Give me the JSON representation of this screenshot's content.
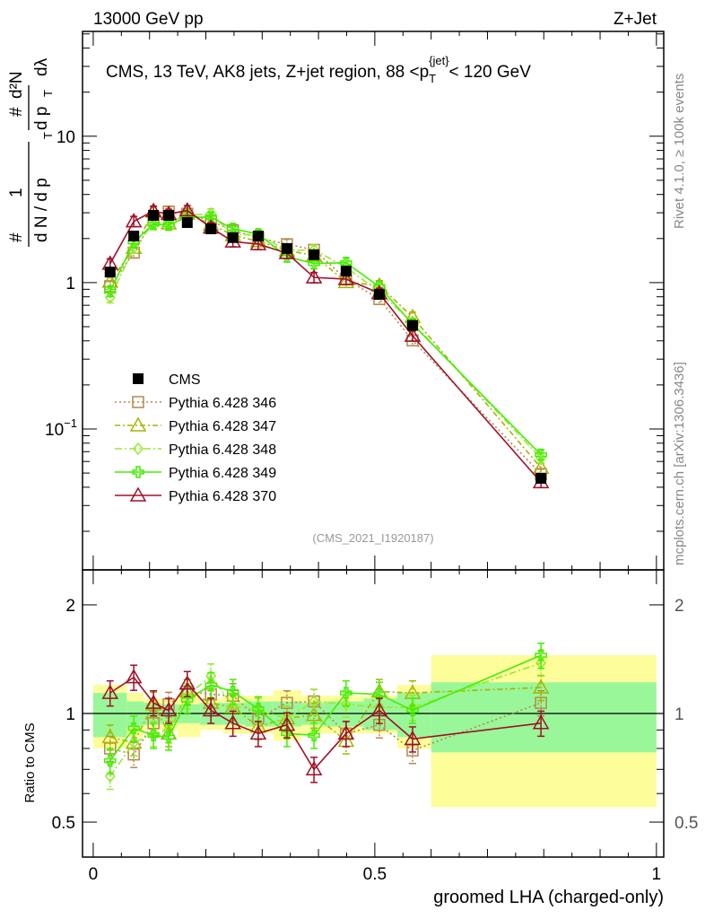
{
  "header": {
    "left": "13000 GeV pp",
    "right": "Z+Jet"
  },
  "side_labels": {
    "rivet": "Rivet 4.1.0, ≥ 100k events",
    "mcplots": "mcplots.cern.ch [arXiv:1306.3436]"
  },
  "chart_data": {
    "type": "line",
    "title": "CMS, 13 TeV, AK8 jets, Z+jet region, 88 <p_T^{jet}< 120 GeV",
    "title_parts": {
      "main": "CMS, 13 TeV, AK8 jets, Z+jet region, 88 <p",
      "sub": "T",
      "sup": "{jet}",
      "end": "< 120 GeV"
    },
    "analysis_id": "(CMS_2021_I1920187)",
    "xlabel": "groomed LHA (charged-only)",
    "ylabel": "1/(dN/dp_T) d²N/(dp_T dλ)",
    "ylabel_parts": {
      "num1": "1",
      "den1": "d N / d p",
      "num2": "d²N",
      "den2": "d p",
      "lam": "dλ",
      "T": "T",
      "hash": "#"
    },
    "ratio_ylabel": "Ratio to CMS",
    "xlim": [
      -0.019,
      1.013
    ],
    "ylim": [
      0.0109,
      52
    ],
    "yscale": "log",
    "ratio_ylim": [
      0.4,
      2.5
    ],
    "x_ticks": [
      {
        "v": 0,
        "label": "0"
      },
      {
        "v": 0.5,
        "label": "0.5"
      },
      {
        "v": 1,
        "label": "1"
      }
    ],
    "y_ticks": [
      {
        "v": 0.1,
        "label": "10",
        "exp": "−1"
      },
      {
        "v": 1,
        "label": "1",
        "exp": ""
      },
      {
        "v": 10,
        "label": "10",
        "exp": ""
      }
    ],
    "ratio_ticks": [
      {
        "v": 0.5,
        "label": "0.5"
      },
      {
        "v": 1,
        "label": "1"
      },
      {
        "v": 2,
        "label": "2"
      }
    ],
    "bin_edges": [
      0,
      0.06,
      0.09,
      0.12,
      0.15,
      0.19,
      0.23,
      0.27,
      0.32,
      0.37,
      0.41,
      0.48,
      0.54,
      0.6,
      1.0
    ],
    "x": [
      0.03,
      0.072,
      0.107,
      0.134,
      0.167,
      0.209,
      0.248,
      0.293,
      0.344,
      0.392,
      0.449,
      0.508,
      0.567,
      0.795
    ],
    "cms": {
      "name": "CMS",
      "values": [
        1.18,
        2.08,
        2.88,
        2.88,
        2.57,
        2.33,
        2.03,
        2.08,
        1.71,
        1.55,
        1.2,
        0.83,
        0.51,
        0.046
      ]
    },
    "bands": {
      "stat": [
        0.14,
        0.08,
        0.07,
        0.06,
        0.06,
        0.07,
        0.07,
        0.08,
        0.08,
        0.07,
        0.08,
        0.1,
        0.14,
        0.22
      ],
      "total": [
        0.2,
        0.14,
        0.1,
        0.1,
        0.14,
        0.1,
        0.12,
        0.12,
        0.16,
        0.12,
        0.12,
        0.12,
        0.2,
        0.45
      ]
    },
    "series": [
      {
        "name": "Pythia 6.428 346",
        "color": "#b5894b",
        "dash": "2,3",
        "marker": "square",
        "rel_err": 0.08,
        "ratio": [
          0.8,
          0.77,
          0.94,
          1.06,
          1.15,
          1.13,
          1.12,
          0.97,
          1.07,
          1.08,
          0.88,
          0.93,
          0.79,
          1.07
        ]
      },
      {
        "name": "Pythia 6.428 347",
        "color": "#a8b400",
        "dash": "6,3,2,3",
        "marker": "triangle",
        "rel_err": 0.08,
        "ratio": [
          0.86,
          0.83,
          1.06,
          0.88,
          1.15,
          1.07,
          1.04,
          0.92,
          0.97,
          0.99,
          0.84,
          1.15,
          1.14,
          1.18
        ]
      },
      {
        "name": "Pythia 6.428 348",
        "color": "#99e833",
        "dash": "8,3,2,3",
        "marker": "diamond",
        "rel_err": 0.08,
        "ratio": [
          0.67,
          0.83,
          0.88,
          0.9,
          1.12,
          1.27,
          1.05,
          1.02,
          0.97,
          1.08,
          1.06,
          1.04,
          1.04,
          1.38
        ]
      },
      {
        "name": "Pythia 6.428 349",
        "color": "#44ee00",
        "dash": "",
        "marker": "cross",
        "rel_err": 0.08,
        "ratio": [
          0.74,
          0.91,
          0.87,
          0.86,
          1.09,
          1.2,
          1.15,
          1.03,
          0.88,
          0.87,
          1.14,
          1.13,
          1.02,
          1.45
        ]
      },
      {
        "name": "Pythia 6.428 370",
        "color": "#a0102a",
        "dash": "",
        "marker": "triangle",
        "rel_err": 0.08,
        "ratio": [
          1.14,
          1.26,
          1.07,
          1.02,
          1.21,
          1.02,
          0.94,
          0.88,
          0.93,
          0.7,
          0.88,
          1.02,
          0.85,
          0.94
        ]
      }
    ],
    "legend_position": "center-left"
  }
}
